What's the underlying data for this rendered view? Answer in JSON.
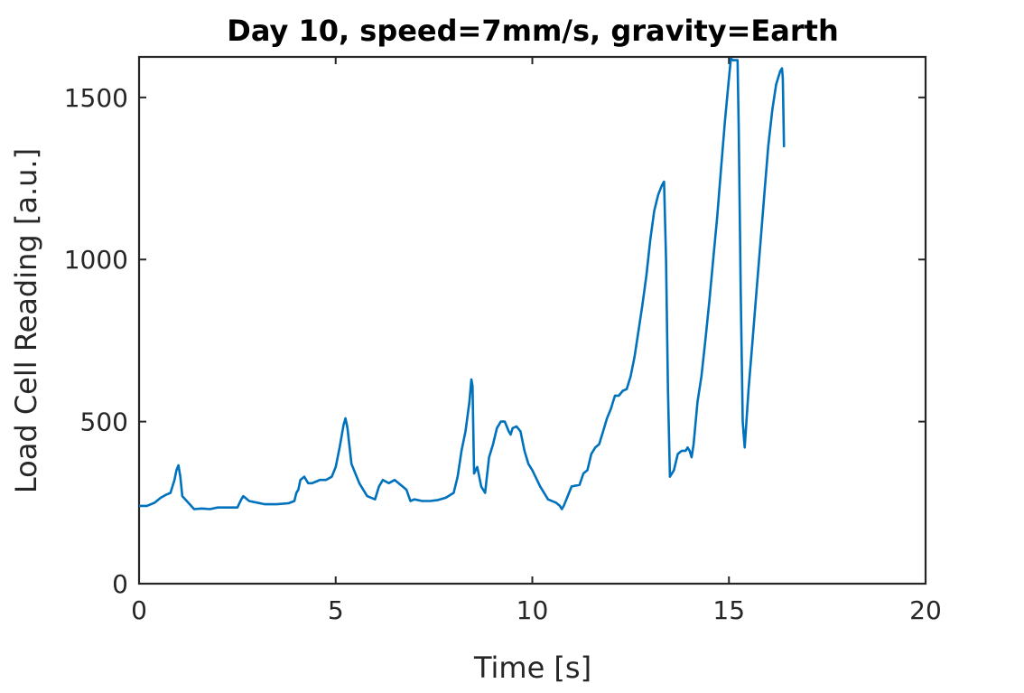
{
  "chart_data": {
    "type": "line",
    "title": "Day 10, speed=7mm/s, gravity=Earth",
    "xlabel": "Time [s]",
    "ylabel": "Load Cell Reading [a.u.]",
    "xlim": [
      0,
      20
    ],
    "ylim": [
      0,
      1625
    ],
    "xticks": [
      0,
      5,
      10,
      15,
      20
    ],
    "xtick_labels": [
      "0",
      "5",
      "10",
      "15",
      "20"
    ],
    "yticks": [
      0,
      500,
      1000,
      1500
    ],
    "ytick_labels": [
      "0",
      "500",
      "1000",
      "1500"
    ],
    "grid": false,
    "legend": false,
    "line_color": "#0072BD",
    "axis_color": "#262626",
    "series": [
      {
        "x": [
          0.0,
          0.2,
          0.4,
          0.55,
          0.7,
          0.8,
          0.9,
          0.95,
          1.0,
          1.05,
          1.1,
          1.25,
          1.4,
          1.6,
          1.8,
          2.0,
          2.2,
          2.5,
          2.6,
          2.65,
          2.7,
          2.8,
          3.0,
          3.2,
          3.5,
          3.8,
          3.95,
          4.0,
          4.05,
          4.1,
          4.2,
          4.3,
          4.4,
          4.5,
          4.6,
          4.75,
          4.9,
          5.0,
          5.1,
          5.2,
          5.25,
          5.3,
          5.4,
          5.5,
          5.6,
          5.8,
          6.0,
          6.1,
          6.2,
          6.35,
          6.5,
          6.7,
          6.8,
          6.9,
          7.0,
          7.2,
          7.4,
          7.6,
          7.8,
          8.0,
          8.1,
          8.2,
          8.3,
          8.4,
          8.45,
          8.48,
          8.52,
          8.6,
          8.7,
          8.8,
          8.9,
          9.0,
          9.1,
          9.2,
          9.3,
          9.4,
          9.45,
          9.5,
          9.6,
          9.7,
          9.8,
          9.9,
          10.0,
          10.2,
          10.4,
          10.6,
          10.7,
          10.75,
          10.8,
          10.9,
          11.0,
          11.2,
          11.3,
          11.4,
          11.5,
          11.6,
          11.7,
          11.8,
          11.9,
          12.0,
          12.1,
          12.2,
          12.3,
          12.4,
          12.5,
          12.6,
          12.7,
          12.8,
          12.9,
          13.0,
          13.1,
          13.2,
          13.3,
          13.35,
          13.4,
          13.45,
          13.5,
          13.6,
          13.7,
          13.8,
          13.9,
          13.95,
          14.0,
          14.05,
          14.1,
          14.2,
          14.3,
          14.4,
          14.5,
          14.6,
          14.7,
          14.8,
          14.9,
          15.0,
          15.05,
          15.1,
          15.2,
          15.22,
          15.25,
          15.3,
          15.35,
          15.4,
          15.5,
          15.6,
          15.7,
          15.8,
          15.9,
          16.0,
          16.1,
          16.2,
          16.3,
          16.35,
          16.37,
          16.4
        ],
        "y": [
          240,
          240,
          250,
          265,
          275,
          280,
          320,
          350,
          365,
          330,
          270,
          250,
          230,
          232,
          230,
          235,
          235,
          235,
          260,
          270,
          265,
          255,
          250,
          245,
          245,
          248,
          255,
          280,
          290,
          320,
          330,
          310,
          310,
          315,
          320,
          320,
          330,
          360,
          420,
          490,
          510,
          480,
          370,
          340,
          310,
          270,
          260,
          300,
          320,
          310,
          320,
          300,
          290,
          255,
          260,
          255,
          255,
          258,
          265,
          280,
          330,
          410,
          470,
          560,
          630,
          610,
          340,
          360,
          300,
          280,
          390,
          430,
          480,
          500,
          500,
          470,
          460,
          480,
          485,
          470,
          410,
          370,
          350,
          300,
          260,
          250,
          240,
          230,
          240,
          270,
          300,
          305,
          340,
          350,
          400,
          420,
          430,
          470,
          510,
          540,
          580,
          580,
          595,
          600,
          640,
          700,
          780,
          860,
          950,
          1060,
          1150,
          1200,
          1230,
          1240,
          1000,
          600,
          330,
          350,
          400,
          410,
          410,
          420,
          410,
          390,
          430,
          560,
          640,
          750,
          870,
          1000,
          1130,
          1280,
          1430,
          1560,
          1620,
          1615,
          1615,
          1615,
          1400,
          900,
          500,
          420,
          600,
          750,
          900,
          1050,
          1200,
          1350,
          1460,
          1540,
          1580,
          1590,
          1560,
          1350
        ]
      }
    ]
  }
}
